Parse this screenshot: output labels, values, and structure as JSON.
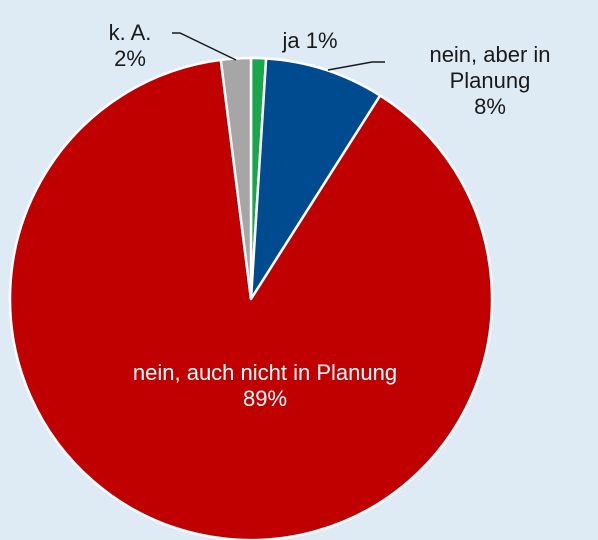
{
  "chart_data": {
    "type": "pie",
    "categories": [
      "ja",
      "nein, aber in Planung",
      "nein, auch nicht in Planung",
      "k. A."
    ],
    "values": [
      1,
      8,
      89,
      2
    ],
    "value_labels": [
      "1%",
      "8%",
      "89%",
      "2%"
    ],
    "colors": [
      "#1aa64a",
      "#004a8f",
      "#c00000",
      "#a6a6a6"
    ]
  }
}
